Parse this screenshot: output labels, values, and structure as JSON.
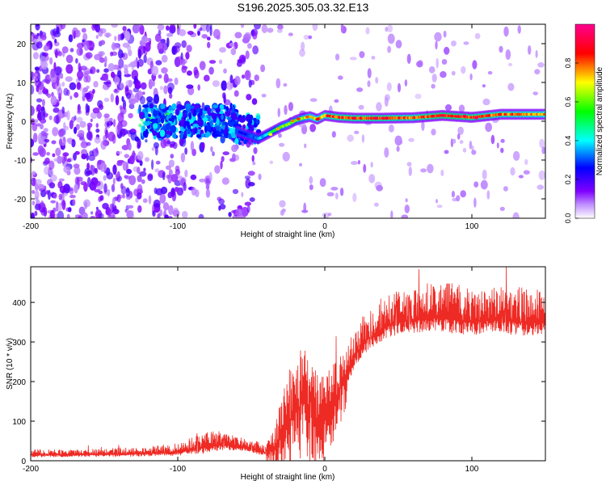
{
  "title": "S196.2025.305.03.32.E13",
  "chart_data": [
    {
      "type": "heatmap",
      "xlabel": "Height of straight line (km)",
      "ylabel": "Frequency (Hz)",
      "xlim": [
        -200,
        150
      ],
      "ylim": [
        -25,
        25
      ],
      "xticks": [
        -200,
        -100,
        0,
        100
      ],
      "yticks": [
        -20,
        -10,
        0,
        10,
        20
      ],
      "colorbar": {
        "label": "Normalized spectral amplitude",
        "range": [
          0,
          1
        ],
        "ticks": [
          0.0,
          0.2,
          0.4,
          0.6,
          0.8
        ],
        "colors": [
          "#ffffff",
          "#8000ff",
          "#0000ff",
          "#00ffff",
          "#00ff00",
          "#ffff00",
          "#ff0000",
          "#ff0080"
        ]
      },
      "ridge": {
        "x": [
          -60,
          -55,
          -50,
          -45,
          -40,
          -35,
          -30,
          -25,
          -20,
          -15,
          -10,
          -5,
          0,
          10,
          20,
          40,
          60,
          80,
          100,
          120,
          150
        ],
        "freq": [
          -2.5,
          -3.2,
          -3.8,
          -4.5,
          -3.5,
          -2.5,
          -1.5,
          -0.8,
          0.2,
          0.8,
          1.2,
          0.5,
          1.5,
          1.0,
          0.8,
          0.8,
          0.9,
          1.5,
          1.0,
          1.8,
          1.8
        ],
        "amplitude": [
          0.25,
          0.25,
          0.3,
          0.35,
          0.4,
          0.55,
          0.6,
          0.65,
          0.6,
          0.65,
          0.7,
          0.75,
          0.8,
          0.85,
          0.85,
          0.85,
          0.8,
          0.9,
          0.85,
          0.8,
          0.75
        ]
      }
    },
    {
      "type": "line",
      "xlabel": "Height of straight line (km)",
      "ylabel": "SNR (10 * v/v)",
      "xlim": [
        -200,
        150
      ],
      "ylim": [
        0,
        490
      ],
      "xticks": [
        -200,
        -100,
        0,
        100
      ],
      "yticks": [
        0,
        100,
        200,
        300,
        400
      ],
      "series": [
        {
          "name": "SNR",
          "color": "#ee2a24",
          "x": [
            -200,
            -180,
            -160,
            -140,
            -120,
            -100,
            -90,
            -80,
            -70,
            -60,
            -50,
            -45,
            -40,
            -35,
            -30,
            -25,
            -20,
            -15,
            -10,
            -5,
            0,
            5,
            10,
            15,
            20,
            25,
            30,
            40,
            50,
            60,
            70,
            80,
            90,
            100,
            110,
            120,
            130,
            140,
            150
          ],
          "baseline": [
            15,
            15,
            16,
            17,
            18,
            22,
            28,
            35,
            40,
            38,
            30,
            25,
            20,
            30,
            60,
            90,
            120,
            150,
            120,
            100,
            110,
            140,
            180,
            220,
            260,
            290,
            310,
            335,
            350,
            355,
            360,
            360,
            355,
            350,
            355,
            355,
            350,
            350,
            350
          ],
          "spread": [
            15,
            15,
            16,
            18,
            20,
            25,
            35,
            45,
            40,
            30,
            25,
            25,
            20,
            60,
            120,
            150,
            160,
            160,
            150,
            130,
            120,
            110,
            100,
            90,
            80,
            80,
            80,
            90,
            90,
            90,
            100,
            100,
            100,
            95,
            90,
            95,
            100,
            95,
            90
          ]
        }
      ]
    }
  ]
}
